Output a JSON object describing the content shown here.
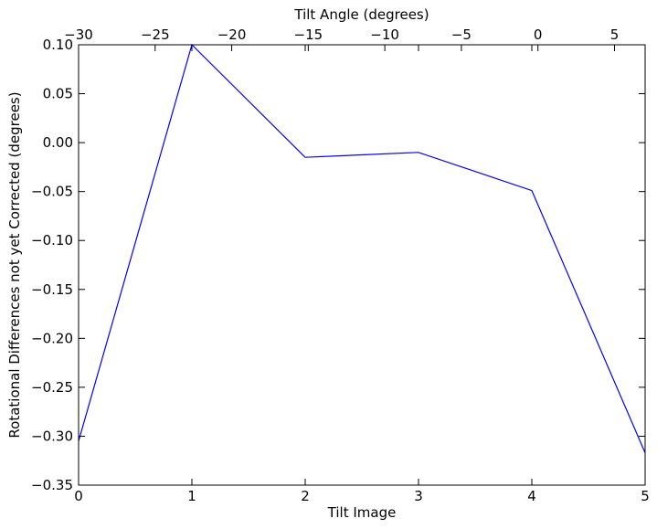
{
  "chart_data": {
    "type": "line",
    "title": "",
    "xlabel": "Tilt Image",
    "ylabel": "Rotational Differences not yet Corrected (degrees)",
    "top_xlabel": "Tilt Angle (degrees)",
    "xlim": [
      0,
      5
    ],
    "ylim": [
      -0.35,
      0.1
    ],
    "top_xlim": [
      -30,
      7
    ],
    "x_ticks": [
      {
        "value": 0,
        "label": "0"
      },
      {
        "value": 1,
        "label": "1"
      },
      {
        "value": 2,
        "label": "2"
      },
      {
        "value": 3,
        "label": "3"
      },
      {
        "value": 4,
        "label": "4"
      },
      {
        "value": 5,
        "label": "5"
      }
    ],
    "y_ticks": [
      {
        "value": 0.1,
        "label": "0.10"
      },
      {
        "value": 0.05,
        "label": "0.05"
      },
      {
        "value": 0.0,
        "label": "0.00"
      },
      {
        "value": -0.05,
        "label": "−0.05"
      },
      {
        "value": -0.1,
        "label": "−0.10"
      },
      {
        "value": -0.15,
        "label": "−0.15"
      },
      {
        "value": -0.2,
        "label": "−0.20"
      },
      {
        "value": -0.25,
        "label": "−0.25"
      },
      {
        "value": -0.3,
        "label": "−0.30"
      },
      {
        "value": -0.35,
        "label": "−0.35"
      }
    ],
    "top_x_ticks": [
      {
        "value": -30,
        "label": "−30"
      },
      {
        "value": -25,
        "label": "−25"
      },
      {
        "value": -20,
        "label": "−20"
      },
      {
        "value": -15,
        "label": "−15"
      },
      {
        "value": -10,
        "label": "−10"
      },
      {
        "value": -5,
        "label": "−5"
      },
      {
        "value": 0,
        "label": "0"
      },
      {
        "value": 5,
        "label": "5"
      }
    ],
    "grid": false,
    "series": [
      {
        "color": "#0000ff",
        "x": [
          0,
          1,
          2,
          3,
          4,
          5
        ],
        "y": [
          -0.305,
          0.1,
          -0.015,
          -0.01,
          -0.049,
          -0.317
        ]
      }
    ]
  }
}
